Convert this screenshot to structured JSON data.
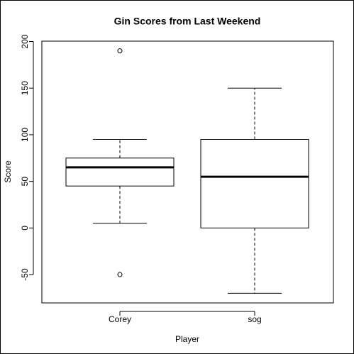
{
  "chart_data": {
    "type": "box",
    "title": "Gin Scores from Last Weekend",
    "x_label": "Player",
    "y_label": "Score",
    "categories": [
      "Corey",
      "sog"
    ],
    "boxes": [
      {
        "whisker_low": 5,
        "q1": 45,
        "median": 65,
        "q3": 75,
        "whisker_high": 95,
        "outliers": [
          190,
          -50
        ]
      },
      {
        "whisker_low": -70,
        "q1": 0,
        "median": 55,
        "q3": 95,
        "whisker_high": 150,
        "outliers": []
      }
    ],
    "color": "#000000",
    "ylim": [
      -80.4,
      200.4
    ],
    "yticks": [
      -50,
      0,
      50,
      100,
      150,
      200
    ]
  }
}
